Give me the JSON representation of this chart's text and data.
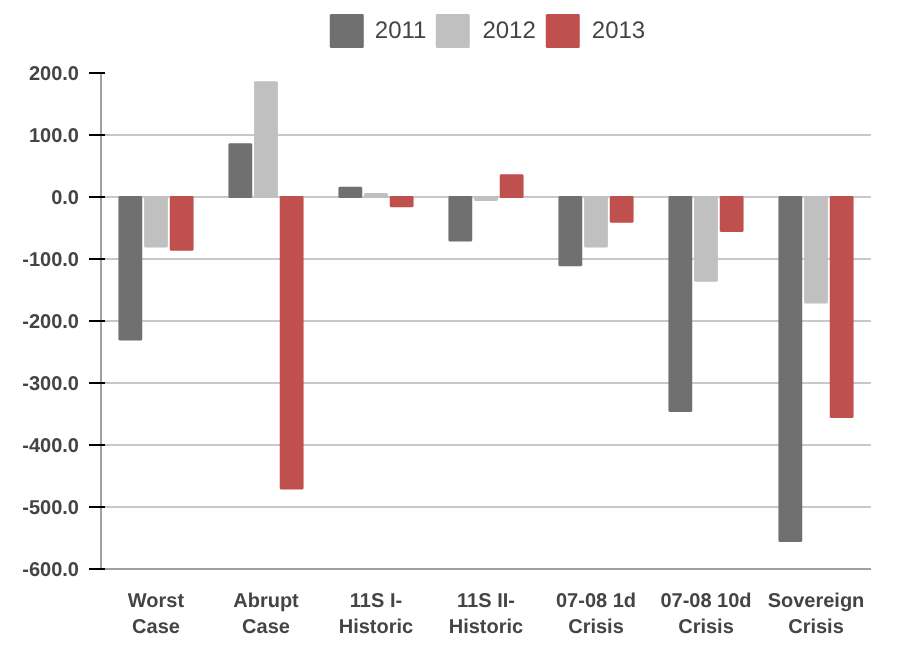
{
  "chart_data": {
    "type": "bar",
    "categories": [
      "Worst\nCase",
      "Abrupt\nCase",
      "11S I-\nHistoric",
      "11S II-\nHistoric",
      "07-08 1d\nCrisis",
      "07-08 10d\nCrisis",
      "Sovereign\nCrisis"
    ],
    "series": [
      {
        "name": "2011",
        "color": "#707070",
        "values": [
          -230,
          85,
          15,
          -70,
          -110,
          -345,
          -555
        ]
      },
      {
        "name": "2012",
        "color": "#c0c0c0",
        "values": [
          -80,
          185,
          5,
          -5,
          -80,
          -135,
          -170
        ]
      },
      {
        "name": "2013",
        "color": "#c0504d",
        "values": [
          -85,
          -470,
          -15,
          35,
          -40,
          -55,
          -355
        ]
      }
    ],
    "ylim": [
      -600,
      200
    ],
    "yticks": [
      {
        "value": -600,
        "label": "-600.0"
      },
      {
        "value": -500,
        "label": "-500.0"
      },
      {
        "value": -400,
        "label": "-400.0"
      },
      {
        "value": -300,
        "label": "-300.0"
      },
      {
        "value": -200,
        "label": "-200.0"
      },
      {
        "value": -100,
        "label": "-100.0"
      },
      {
        "value": 0,
        "label": "0.0"
      },
      {
        "value": 100,
        "label": "100.0"
      },
      {
        "value": 200,
        "label": "200.0"
      }
    ],
    "grid": "y",
    "legend": "top"
  }
}
